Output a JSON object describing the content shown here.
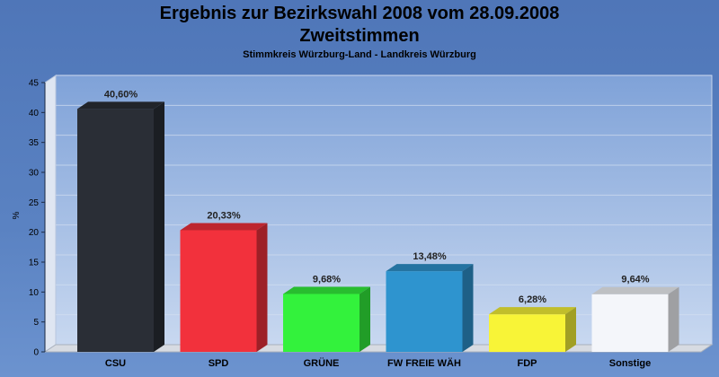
{
  "chart_data": {
    "type": "bar",
    "title": "Ergebnis zur Bezirkswahl 2008 vom 28.09.2008",
    "title_line2": "Zweitstimmen",
    "subtitle": "Stimmkreis Würzburg-Land - Landkreis Würzburg",
    "ylabel": "%",
    "xlabel": "",
    "ylim": [
      0,
      45
    ],
    "yticks": [
      "0",
      "5",
      "10",
      "15",
      "20",
      "25",
      "30",
      "35",
      "40",
      "45"
    ],
    "grid": true,
    "categories": [
      "CSU",
      "SPD",
      "GRÜNE",
      "FW FREIE WÄH",
      "FDP",
      "Sonstige"
    ],
    "values": [
      40.6,
      20.33,
      9.68,
      13.48,
      6.28,
      9.64
    ],
    "value_labels": [
      "40,60%",
      "20,33%",
      "9,68%",
      "13,48%",
      "6,28%",
      "9,64%"
    ],
    "colors": [
      "#2a2e36",
      "#f2313c",
      "#33f23c",
      "#2e94cf",
      "#f8f437",
      "#f4f6fa"
    ]
  }
}
